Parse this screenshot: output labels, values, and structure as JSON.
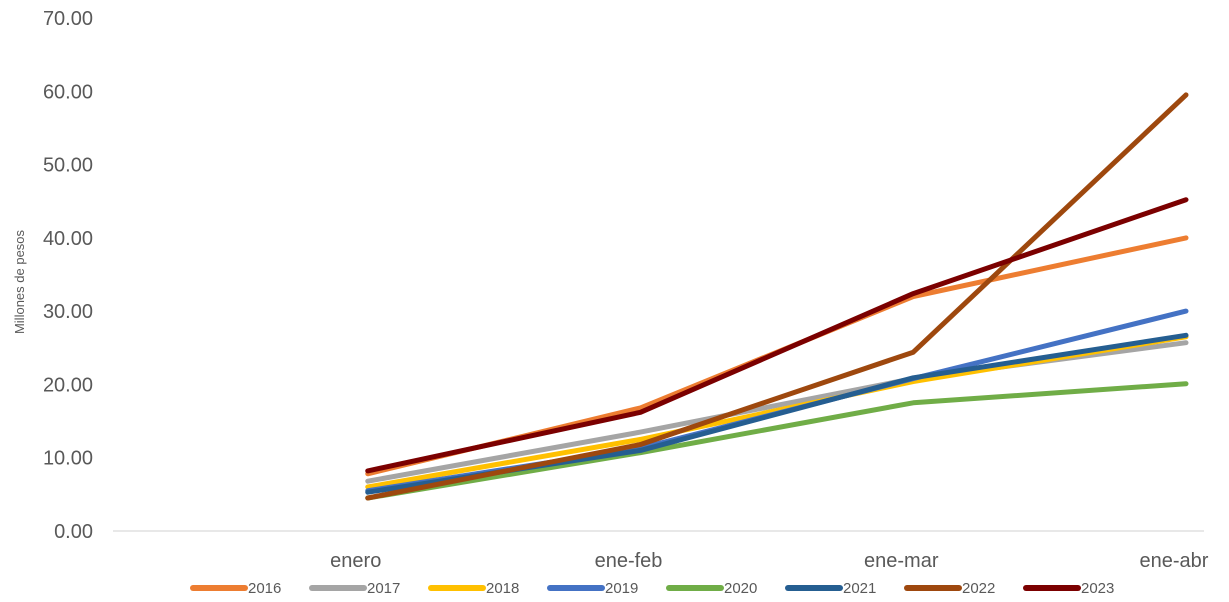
{
  "chart_data": {
    "type": "line",
    "title": "",
    "xlabel": "",
    "ylabel": "Millones de pesos",
    "categories": [
      "enero",
      "ene-feb",
      "ene-mar",
      "ene-abr"
    ],
    "y_tick_labels": [
      "0.00",
      "10.00",
      "20.00",
      "30.00",
      "40.00",
      "50.00",
      "60.00",
      "70.00"
    ],
    "ylim": [
      0,
      70
    ],
    "grid": false,
    "legend_position": "bottom",
    "series": [
      {
        "name": "2016",
        "color": "#ED7D31",
        "values": [
          7.8,
          16.8,
          32.0,
          40.0
        ]
      },
      {
        "name": "2017",
        "color": "#A5A5A5",
        "values": [
          6.8,
          13.5,
          20.8,
          25.7
        ]
      },
      {
        "name": "2018",
        "color": "#FFC000",
        "values": [
          6.0,
          12.5,
          20.4,
          26.5
        ]
      },
      {
        "name": "2019",
        "color": "#4472C4",
        "values": [
          5.5,
          11.3,
          20.8,
          30.0
        ]
      },
      {
        "name": "2020",
        "color": "#70AD47",
        "values": [
          4.5,
          10.7,
          17.5,
          20.1
        ]
      },
      {
        "name": "2021",
        "color": "#255E91",
        "values": [
          5.3,
          11.0,
          20.9,
          26.7
        ]
      },
      {
        "name": "2022",
        "color": "#9E480E",
        "values": [
          4.5,
          11.8,
          24.4,
          59.5
        ]
      },
      {
        "name": "2023",
        "color": "#7B0000",
        "values": [
          8.2,
          16.2,
          32.4,
          45.2
        ]
      }
    ]
  }
}
